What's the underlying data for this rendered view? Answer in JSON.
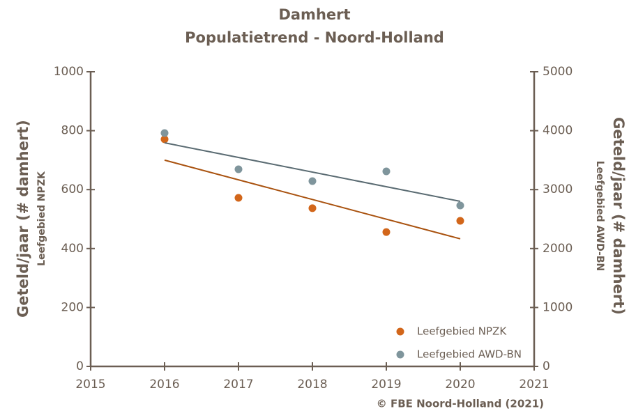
{
  "chart_data": {
    "type": "scatter",
    "title": "Damhert",
    "subtitle": "Populatietrend - Noord-Holland",
    "ylabel": "Geteld/jaar (# damhert)",
    "ylabel_sub": "Leefgebied NPZK",
    "y2label": "Geteld/jaar (# damhert)",
    "y2label_sub": "Leefgebied AWD-BN",
    "credit": "© FBE Noord-Holland (2021)",
    "x": [
      2016,
      2017,
      2018,
      2019,
      2020
    ],
    "trend_x": [
      2016,
      2020
    ],
    "series": [
      {
        "name": "Leefgebied NPZK",
        "color": "#d2661a",
        "values": [
          771,
          572,
          537,
          456,
          494
        ],
        "trend_values": [
          700,
          433
        ]
      },
      {
        "name": "Leefgebied AWD-BN",
        "color": "#7f959c",
        "axis": "y2",
        "values": [
          3960,
          3345,
          3144,
          3310,
          2730
        ],
        "trend_values": [
          3794,
          2801
        ]
      }
    ],
    "xlim": [
      2015,
      2021
    ],
    "xticks": [
      2015,
      2016,
      2017,
      2018,
      2019,
      2020,
      2021
    ],
    "ylim": [
      0,
      1000
    ],
    "yticks": [
      0,
      200,
      400,
      600,
      800,
      1000
    ],
    "y2lim": [
      0,
      5000
    ],
    "y2ticks": [
      0,
      1000,
      2000,
      3000,
      4000,
      5000
    ],
    "legend": "lower right",
    "trend_colors": [
      "#a9520f",
      "#5a6b72"
    ]
  }
}
